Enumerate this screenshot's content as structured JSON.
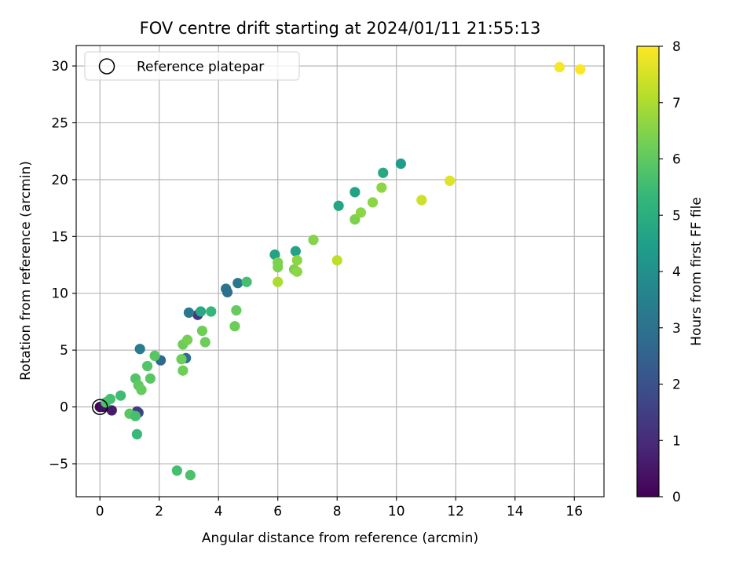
{
  "chart_data": {
    "type": "scatter",
    "title": "FOV centre drift starting at 2024/01/11 21:55:13",
    "xlabel": "Angular distance from reference (arcmin)",
    "ylabel": "Rotation from reference (arcmin)",
    "xlim": [
      -0.8,
      17
    ],
    "ylim": [
      -7.9,
      31.8
    ],
    "xticks": [
      0,
      2,
      4,
      6,
      8,
      10,
      12,
      14,
      16
    ],
    "yticks": [
      -5,
      0,
      5,
      10,
      15,
      20,
      25,
      30
    ],
    "xtick_labels": [
      "0",
      "2",
      "4",
      "6",
      "8",
      "10",
      "12",
      "14",
      "16"
    ],
    "ytick_labels": [
      "−5",
      "0",
      "5",
      "10",
      "15",
      "20",
      "25",
      "30"
    ],
    "grid": true,
    "legend": {
      "label": "Reference platepar",
      "placement": "top-left"
    },
    "reference_point": {
      "x": 0,
      "y": 0
    },
    "colorbar": {
      "label": "Hours from first FF file",
      "colormap": "viridis",
      "range": [
        0,
        8
      ],
      "ticks": [
        0,
        1,
        2,
        3,
        4,
        5,
        6,
        7,
        8
      ],
      "tick_labels": [
        "0",
        "1",
        "2",
        "3",
        "4",
        "5",
        "6",
        "7",
        "8"
      ]
    },
    "points": [
      {
        "x": 0.0,
        "y": 0.0,
        "hours": 0.1
      },
      {
        "x": 0.1,
        "y": 0.0,
        "hours": 0.3
      },
      {
        "x": 0.4,
        "y": -0.3,
        "hours": 0.6
      },
      {
        "x": 1.3,
        "y": -0.5,
        "hours": 1.8
      },
      {
        "x": 1.25,
        "y": -0.4,
        "hours": 1.4
      },
      {
        "x": 3.3,
        "y": 8.1,
        "hours": 1.2
      },
      {
        "x": 3.0,
        "y": 8.3,
        "hours": 3.2
      },
      {
        "x": 2.9,
        "y": 4.3,
        "hours": 2.9
      },
      {
        "x": 2.05,
        "y": 4.1,
        "hours": 2.7
      },
      {
        "x": 1.35,
        "y": 5.1,
        "hours": 3.3
      },
      {
        "x": 4.25,
        "y": 10.4,
        "hours": 3.1
      },
      {
        "x": 4.3,
        "y": 10.1,
        "hours": 2.9
      },
      {
        "x": 4.65,
        "y": 10.9,
        "hours": 3.2
      },
      {
        "x": 3.4,
        "y": 8.4,
        "hours": 4.8
      },
      {
        "x": 3.75,
        "y": 8.4,
        "hours": 5.3
      },
      {
        "x": 5.9,
        "y": 13.4,
        "hours": 4.6
      },
      {
        "x": 6.6,
        "y": 13.7,
        "hours": 4.6
      },
      {
        "x": 4.95,
        "y": 11.0,
        "hours": 5.6
      },
      {
        "x": 8.05,
        "y": 17.7,
        "hours": 4.7
      },
      {
        "x": 8.6,
        "y": 18.9,
        "hours": 4.6
      },
      {
        "x": 9.55,
        "y": 20.6,
        "hours": 4.8
      },
      {
        "x": 10.15,
        "y": 21.4,
        "hours": 4.4
      },
      {
        "x": 0.2,
        "y": 0.4,
        "hours": 5.7
      },
      {
        "x": 0.35,
        "y": 0.7,
        "hours": 5.6
      },
      {
        "x": 0.7,
        "y": 1.0,
        "hours": 5.5
      },
      {
        "x": 1.0,
        "y": -0.6,
        "hours": 5.9
      },
      {
        "x": 1.2,
        "y": -0.8,
        "hours": 5.6
      },
      {
        "x": 1.25,
        "y": -2.4,
        "hours": 5.4
      },
      {
        "x": 1.2,
        "y": 2.5,
        "hours": 5.8
      },
      {
        "x": 1.3,
        "y": 1.9,
        "hours": 6.0
      },
      {
        "x": 1.4,
        "y": 1.5,
        "hours": 6.1
      },
      {
        "x": 1.6,
        "y": 3.6,
        "hours": 5.8
      },
      {
        "x": 1.7,
        "y": 2.5,
        "hours": 5.9
      },
      {
        "x": 1.85,
        "y": 4.5,
        "hours": 5.9
      },
      {
        "x": 2.6,
        "y": -5.6,
        "hours": 5.6
      },
      {
        "x": 3.05,
        "y": -6.0,
        "hours": 5.7
      },
      {
        "x": 2.75,
        "y": 4.2,
        "hours": 6.2
      },
      {
        "x": 2.8,
        "y": 3.2,
        "hours": 6.2
      },
      {
        "x": 2.8,
        "y": 5.5,
        "hours": 6.2
      },
      {
        "x": 2.95,
        "y": 5.9,
        "hours": 6.3
      },
      {
        "x": 3.45,
        "y": 6.7,
        "hours": 6.2
      },
      {
        "x": 3.55,
        "y": 5.7,
        "hours": 6.2
      },
      {
        "x": 4.55,
        "y": 7.1,
        "hours": 6.2
      },
      {
        "x": 4.6,
        "y": 8.5,
        "hours": 6.1
      },
      {
        "x": 6.0,
        "y": 12.3,
        "hours": 6.4
      },
      {
        "x": 6.0,
        "y": 12.7,
        "hours": 6.4
      },
      {
        "x": 6.0,
        "y": 11.0,
        "hours": 7.0
      },
      {
        "x": 6.55,
        "y": 12.1,
        "hours": 6.4
      },
      {
        "x": 6.65,
        "y": 11.9,
        "hours": 6.6
      },
      {
        "x": 6.65,
        "y": 12.9,
        "hours": 6.6
      },
      {
        "x": 7.2,
        "y": 14.7,
        "hours": 6.5
      },
      {
        "x": 8.0,
        "y": 12.9,
        "hours": 7.2
      },
      {
        "x": 8.6,
        "y": 16.5,
        "hours": 6.4
      },
      {
        "x": 8.8,
        "y": 17.1,
        "hours": 6.6
      },
      {
        "x": 9.2,
        "y": 18.0,
        "hours": 6.6
      },
      {
        "x": 9.5,
        "y": 19.3,
        "hours": 6.6
      },
      {
        "x": 10.85,
        "y": 18.2,
        "hours": 7.4
      },
      {
        "x": 11.8,
        "y": 19.9,
        "hours": 7.6
      },
      {
        "x": 15.5,
        "y": 29.9,
        "hours": 7.9
      },
      {
        "x": 16.2,
        "y": 29.7,
        "hours": 8.0
      }
    ]
  }
}
